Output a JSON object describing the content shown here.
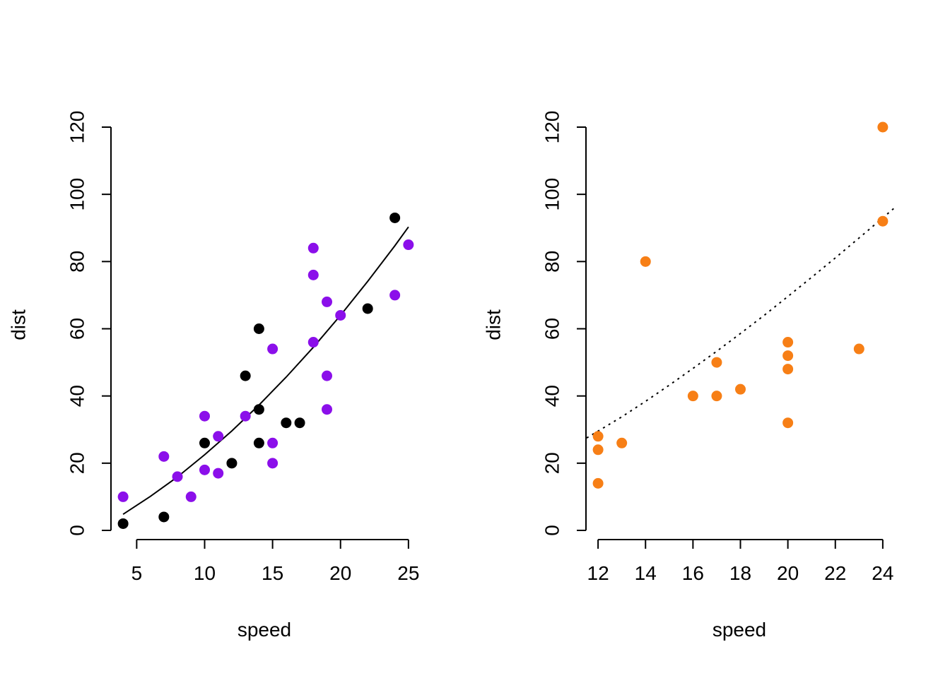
{
  "chart_data": [
    {
      "type": "scatter",
      "xlabel": "speed",
      "ylabel": "dist",
      "xlim": [
        3.16,
        25.84
      ],
      "ylim": [
        0,
        120
      ],
      "x_ticks": [
        5,
        10,
        15,
        20,
        25
      ],
      "y_ticks": [
        0,
        20,
        40,
        60,
        80,
        100,
        120
      ],
      "grid": false,
      "legend": "none",
      "series": [
        {
          "color": "#000000",
          "points": [
            [
              4,
              2
            ],
            [
              7,
              4
            ],
            [
              10,
              26
            ],
            [
              12,
              20
            ],
            [
              13,
              46
            ],
            [
              14,
              60
            ],
            [
              14,
              36
            ],
            [
              14,
              26
            ],
            [
              16,
              32
            ],
            [
              17,
              32
            ],
            [
              22,
              66
            ],
            [
              24,
              93
            ]
          ]
        },
        {
          "color": "#8B0FEA",
          "points": [
            [
              4,
              10
            ],
            [
              7,
              22
            ],
            [
              8,
              16
            ],
            [
              9,
              10
            ],
            [
              10,
              34
            ],
            [
              10,
              18
            ],
            [
              11,
              28
            ],
            [
              11,
              17
            ],
            [
              13,
              34
            ],
            [
              15,
              54
            ],
            [
              15,
              26
            ],
            [
              15,
              20
            ],
            [
              18,
              84
            ],
            [
              18,
              76
            ],
            [
              18,
              56
            ],
            [
              19,
              68
            ],
            [
              19,
              46
            ],
            [
              19,
              36
            ],
            [
              20,
              64
            ],
            [
              24,
              70
            ],
            [
              25,
              85
            ]
          ]
        }
      ],
      "fit_curve": {
        "style": "solid",
        "color": "#000000",
        "points": [
          [
            4,
            4.8
          ],
          [
            6,
            10.1
          ],
          [
            8,
            15.9
          ],
          [
            10,
            22.5
          ],
          [
            12,
            29.6
          ],
          [
            14,
            37.3
          ],
          [
            16,
            45.6
          ],
          [
            18,
            54.5
          ],
          [
            20,
            64.0
          ],
          [
            22,
            74.1
          ],
          [
            24,
            84.7
          ],
          [
            25,
            90.3
          ]
        ]
      }
    },
    {
      "type": "scatter",
      "xlabel": "speed",
      "ylabel": "dist",
      "xlim": [
        11.52,
        24.48
      ],
      "ylim": [
        0,
        120
      ],
      "x_ticks": [
        12,
        14,
        16,
        18,
        20,
        22,
        24
      ],
      "y_ticks": [
        0,
        20,
        40,
        60,
        80,
        100,
        120
      ],
      "grid": false,
      "legend": "none",
      "series": [
        {
          "color": "#F77F16",
          "points": [
            [
              12,
              28
            ],
            [
              12,
              24
            ],
            [
              12,
              14
            ],
            [
              13,
              26
            ],
            [
              14,
              80
            ],
            [
              16,
              40
            ],
            [
              17,
              50
            ],
            [
              17,
              40
            ],
            [
              18,
              42
            ],
            [
              20,
              56
            ],
            [
              20,
              52
            ],
            [
              20,
              48
            ],
            [
              20,
              32
            ],
            [
              23,
              54
            ],
            [
              24,
              120
            ],
            [
              24,
              92
            ]
          ]
        }
      ],
      "fit_curve": {
        "style": "dotted",
        "color": "#000000",
        "points": [
          [
            11.52,
            27.5
          ],
          [
            13,
            33.8
          ],
          [
            14,
            38.4
          ],
          [
            15,
            43.2
          ],
          [
            16,
            48.2
          ],
          [
            17,
            53.3
          ],
          [
            18,
            58.6
          ],
          [
            19,
            64.0
          ],
          [
            20,
            69.6
          ],
          [
            21,
            75.3
          ],
          [
            22,
            81.1
          ],
          [
            23,
            87.0
          ],
          [
            24,
            93.0
          ],
          [
            24.48,
            95.9
          ]
        ]
      }
    }
  ]
}
